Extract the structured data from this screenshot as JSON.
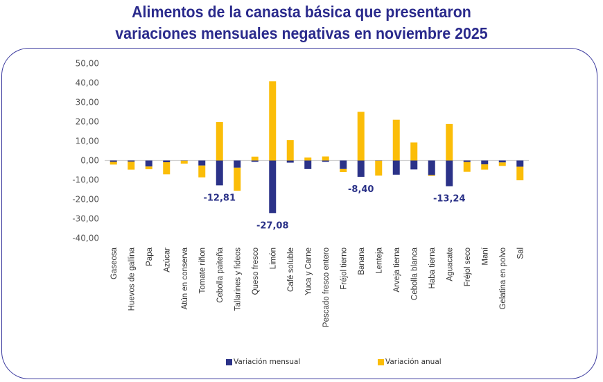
{
  "chart_data": {
    "type": "bar",
    "stacked": true,
    "title": "Alimentos de la canasta básica que presentaron variaciones mensuales negativas en noviembre 2025",
    "title_lines": [
      "Alimentos de la canasta básica que presentaron",
      "variaciones mensuales negativas en noviembre 2025"
    ],
    "xlabel": "",
    "ylabel": "",
    "ylim": [
      -40,
      50
    ],
    "yticks": [
      50,
      40,
      30,
      20,
      10,
      0,
      -10,
      -20,
      -30,
      -40
    ],
    "ytick_labels": [
      "50,00",
      "40,00",
      "30,00",
      "20,00",
      "10,00",
      "0,00",
      "-10,00",
      "-20,00",
      "-30,00",
      "-40,00"
    ],
    "grid": false,
    "legend_position": "bottom",
    "categories": [
      "Gaseosa",
      "Huevos de gallina",
      "Papa",
      "Azúcar",
      "Atún en conserva",
      "Tomate riñon",
      "Cebolla paiteña",
      "Tallarines y fideos",
      "Queso fresco",
      "Limón",
      "Café soluble",
      "Yuca y Carne",
      "Pescado fresco entero",
      "Fréjol tierno",
      "Banana",
      "Lenteja",
      "Arveja tierna",
      "Cebolla blanca",
      "Haba tierna",
      "Aguacate",
      "Fréjol seco",
      "Maní",
      "Gelatina en polvo",
      "Sal"
    ],
    "series": [
      {
        "name": "Variación mensual",
        "color": "#2b3288",
        "values": [
          -0.7,
          -0.6,
          -3.1,
          -0.9,
          -0.1,
          -2.6,
          -12.81,
          -3.7,
          -0.7,
          -27.08,
          -1.1,
          -4.4,
          -0.7,
          -4.4,
          -8.4,
          -0.1,
          -7.3,
          -4.6,
          -7.5,
          -13.24,
          -0.8,
          -2.0,
          -1.0,
          -3.2
        ]
      },
      {
        "name": "Variación anual",
        "color": "#fbbd08",
        "values": [
          -1.4,
          -4.1,
          -1.4,
          -6.2,
          -1.5,
          -6.1,
          19.8,
          -11.9,
          2.0,
          40.8,
          10.5,
          1.5,
          2.1,
          -1.5,
          25.1,
          -7.7,
          21.0,
          9.3,
          -0.4,
          18.8,
          -5.0,
          -2.7,
          -1.8,
          -7.0
        ]
      }
    ],
    "data_labels": [
      {
        "category": "Cebolla paiteña",
        "series": "Variación mensual",
        "text": "-12,81"
      },
      {
        "category": "Limón",
        "series": "Variación mensual",
        "text": "-27,08"
      },
      {
        "category": "Banana",
        "series": "Variación mensual",
        "text": "-8,40"
      },
      {
        "category": "Aguacate",
        "series": "Variación mensual",
        "text": "-13,24"
      }
    ]
  },
  "legend": {
    "monthly_label": "Variación mensual",
    "annual_label": "Variación anual"
  }
}
